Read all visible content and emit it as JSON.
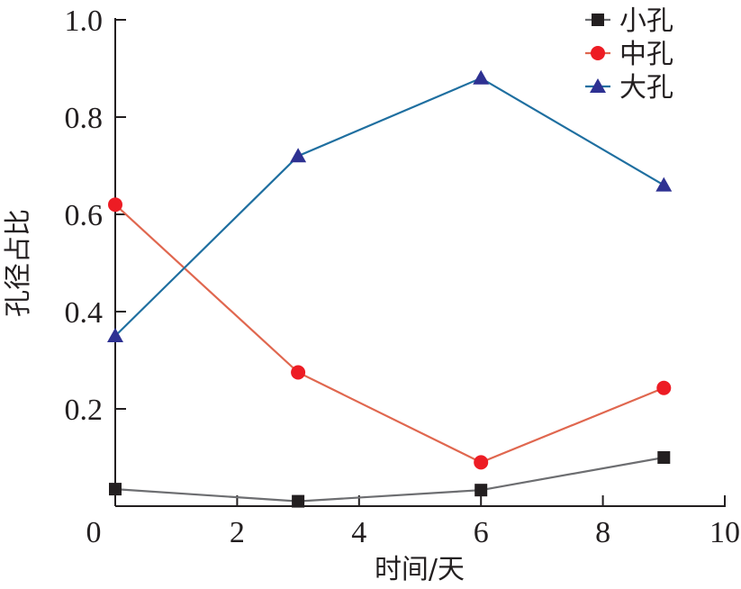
{
  "chart_data": {
    "type": "line",
    "title": "",
    "xlabel": "时间/天",
    "ylabel": "孔径占比",
    "xlim": [
      0,
      10
    ],
    "ylim": [
      0,
      1.0
    ],
    "xticks": [
      "0",
      "2",
      "4",
      "6",
      "8",
      "10"
    ],
    "xtick_values": [
      0,
      2,
      4,
      6,
      8,
      10
    ],
    "yticks": [
      "0.2",
      "0.4",
      "0.6",
      "0.8",
      "1.0"
    ],
    "ytick_values": [
      0.2,
      0.4,
      0.6,
      0.8,
      1.0
    ],
    "legend_position": "top-right",
    "x": [
      0,
      3,
      6,
      9
    ],
    "series": [
      {
        "name": "小孔",
        "marker": "square",
        "line_color": "#6d6e71",
        "marker_color": "#231f20",
        "values": [
          0.035,
          0.01,
          0.033,
          0.1
        ]
      },
      {
        "name": "中孔",
        "marker": "circle",
        "line_color": "#e0674f",
        "marker_color": "#ed1c24",
        "values": [
          0.62,
          0.275,
          0.09,
          0.243
        ]
      },
      {
        "name": "大孔",
        "marker": "triangle",
        "line_color": "#1f6fa0",
        "marker_color": "#2e3192",
        "values": [
          0.35,
          0.72,
          0.88,
          0.66
        ]
      }
    ]
  }
}
